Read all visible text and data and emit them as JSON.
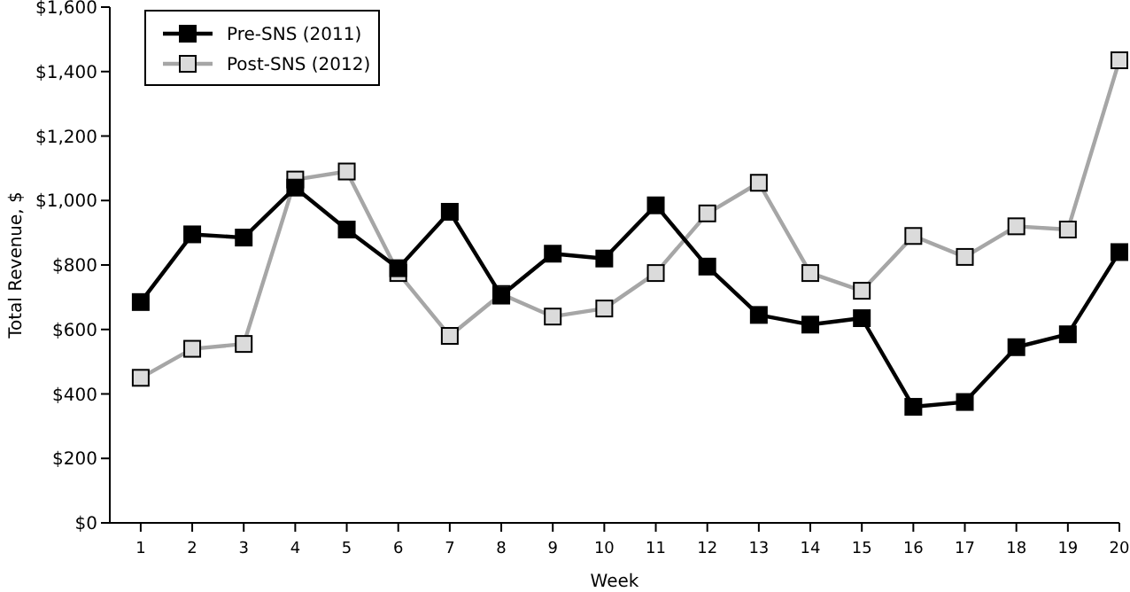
{
  "chart_data": {
    "type": "line",
    "xlabel": "Week",
    "ylabel": "Total Revenue, $",
    "x": [
      1,
      2,
      3,
      4,
      5,
      6,
      7,
      8,
      9,
      10,
      11,
      12,
      13,
      14,
      15,
      16,
      17,
      18,
      19,
      20
    ],
    "xlim": [
      0.4,
      20
    ],
    "xticks": [
      1,
      2,
      3,
      4,
      5,
      6,
      7,
      8,
      9,
      10,
      11,
      12,
      13,
      14,
      15,
      16,
      17,
      18,
      19,
      20
    ],
    "series": [
      {
        "name": "Pre-SNS (2011)",
        "color": "#000000",
        "values": [
          685,
          895,
          885,
          1040,
          910,
          790,
          965,
          705,
          835,
          820,
          985,
          795,
          645,
          615,
          635,
          360,
          375,
          545,
          585,
          840
        ]
      },
      {
        "name": "Post-SNS (2012)",
        "color": "#a6a6a6",
        "values": [
          450,
          540,
          555,
          1065,
          1090,
          775,
          580,
          710,
          640,
          665,
          775,
          960,
          1055,
          775,
          720,
          890,
          825,
          920,
          910,
          1435
        ]
      }
    ],
    "ylim": [
      0,
      1600
    ],
    "yticks": [
      {
        "value": 0,
        "label": "$0"
      },
      {
        "value": 200,
        "label": "$200"
      },
      {
        "value": 400,
        "label": "$400"
      },
      {
        "value": 600,
        "label": "$600"
      },
      {
        "value": 800,
        "label": "$800"
      },
      {
        "value": 1000,
        "label": "$1,000"
      },
      {
        "value": 1200,
        "label": "$1,200"
      },
      {
        "value": 1400,
        "label": "$1,400"
      },
      {
        "value": 1600,
        "label": "$1,600"
      }
    ],
    "grid": false,
    "legend": "top left",
    "marker": "square",
    "line_style": "solid"
  }
}
